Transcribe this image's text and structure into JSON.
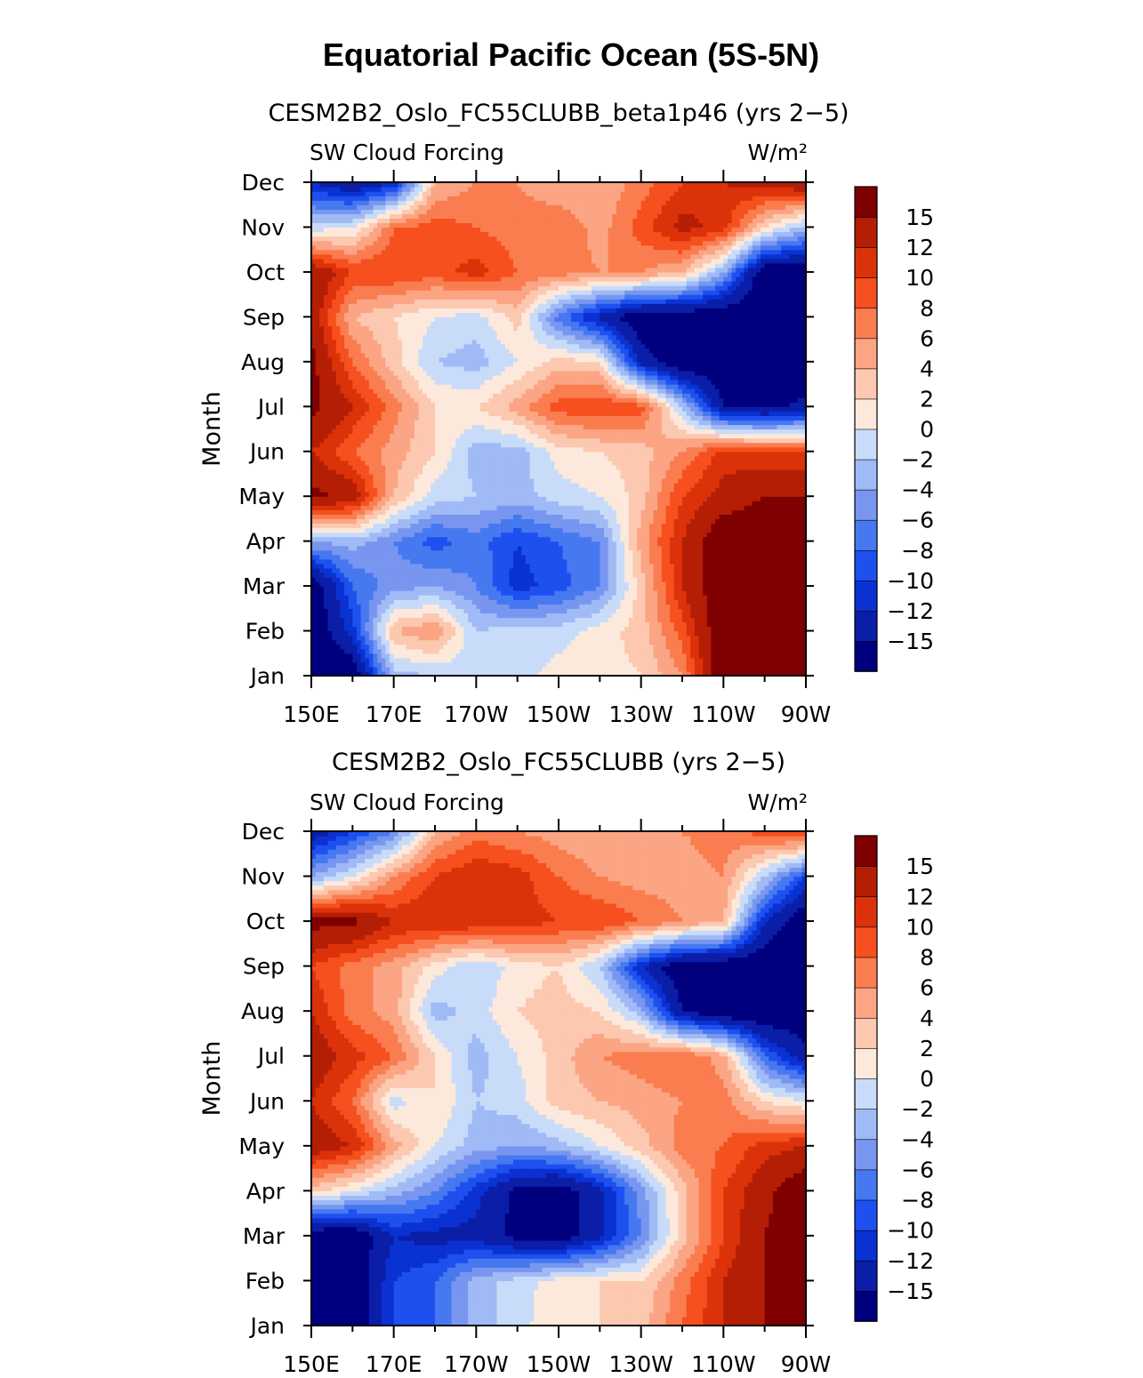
{
  "figure_title": "Equatorial Pacific Ocean (5S-5N)",
  "colors": [
    "#00007f",
    "#0a1ea8",
    "#0a32d2",
    "#1e50f0",
    "#4678f0",
    "#7896f0",
    "#a0baf5",
    "#c8dcfa",
    "#fde9dc",
    "#fcc8b0",
    "#fba584",
    "#fa7d50",
    "#f5501e",
    "#dc320a",
    "#b41e05",
    "#7f0000"
  ],
  "colorbar_labels": [
    "15",
    "12",
    "10",
    "8",
    "6",
    "4",
    "2",
    "0",
    "−2",
    "−4",
    "−6",
    "−8",
    "−10",
    "−12",
    "−15"
  ],
  "chart_data": [
    {
      "type": "heatmap",
      "title": "CESM2B2_Oslo_FC55CLUBB_beta1p46 (yrs 2−5)",
      "variable": "SW Cloud Forcing",
      "units": "W/m²",
      "xlabel": "",
      "ylabel": "Month",
      "xlim": [
        150,
        270
      ],
      "x_tick_values": [
        150,
        170,
        190,
        210,
        230,
        250,
        270
      ],
      "x_tick_labels": [
        "150E",
        "170E",
        "170W",
        "150W",
        "130W",
        "110W",
        "90W"
      ],
      "y_tick_labels": [
        "Jan",
        "Feb",
        "Mar",
        "Apr",
        "May",
        "Jun",
        "Jul",
        "Aug",
        "Sep",
        "Oct",
        "Nov",
        "Dec"
      ],
      "contour_levels": [
        -15,
        -12,
        -10,
        -8,
        -6,
        -4,
        -2,
        0,
        2,
        4,
        6,
        8,
        10,
        12,
        15
      ],
      "x": [
        150,
        160,
        170,
        180,
        190,
        200,
        210,
        220,
        230,
        240,
        250,
        260,
        270
      ],
      "values": [
        [
          -18,
          -18,
          -3,
          -2,
          -1,
          -1,
          1,
          1,
          2,
          6,
          18,
          18,
          18
        ],
        [
          -18,
          -11,
          4,
          6,
          -2,
          -1,
          -1,
          1,
          3,
          9,
          18,
          18,
          18
        ],
        [
          -18,
          -8,
          -5,
          -4,
          -6,
          -11,
          -9,
          -6,
          3,
          12,
          18,
          18,
          18
        ],
        [
          -4,
          -3,
          -6,
          -9,
          -7,
          -10,
          -8,
          -6,
          5,
          12,
          18,
          18,
          18
        ],
        [
          16,
          14,
          4,
          -1,
          -2,
          -3,
          -1,
          0,
          3,
          10,
          13,
          15,
          15
        ],
        [
          12,
          8,
          5,
          2,
          -3,
          -3,
          1,
          2,
          3,
          6,
          11,
          10,
          10
        ],
        [
          16,
          12,
          7,
          2,
          2,
          5,
          9,
          10,
          9,
          -2,
          -15,
          -16,
          -14
        ],
        [
          16,
          8,
          3,
          -2,
          -3,
          0,
          3,
          2,
          -13,
          -18,
          -18,
          -18,
          -18
        ],
        [
          14,
          4,
          2,
          0,
          -1,
          3,
          -7,
          -13,
          -18,
          -18,
          -18,
          -18,
          -18
        ],
        [
          15,
          10,
          10,
          9,
          11,
          8,
          7,
          6,
          6,
          4,
          -4,
          -18,
          -18
        ],
        [
          -1,
          0,
          8,
          9,
          8,
          7,
          8,
          5,
          9,
          13,
          11,
          2,
          -3
        ],
        [
          -12,
          -15,
          -12,
          4,
          6,
          6,
          4,
          4,
          7,
          10,
          12,
          13,
          15
        ]
      ]
    },
    {
      "type": "heatmap",
      "title": "CESM2B2_Oslo_FC55CLUBB (yrs 2−5)",
      "variable": "SW Cloud Forcing",
      "units": "W/m²",
      "xlabel": "",
      "ylabel": "Month",
      "xlim": [
        150,
        270
      ],
      "x_tick_values": [
        150,
        170,
        190,
        210,
        230,
        250,
        270
      ],
      "x_tick_labels": [
        "150E",
        "170E",
        "170W",
        "150W",
        "130W",
        "110W",
        "90W"
      ],
      "y_tick_labels": [
        "Jan",
        "Feb",
        "Mar",
        "Apr",
        "May",
        "Jun",
        "Jul",
        "Aug",
        "Sep",
        "Oct",
        "Nov",
        "Dec"
      ],
      "contour_levels": [
        -15,
        -12,
        -10,
        -8,
        -6,
        -4,
        -2,
        0,
        2,
        4,
        6,
        8,
        10,
        12,
        15
      ],
      "x": [
        150,
        160,
        170,
        180,
        190,
        200,
        210,
        220,
        230,
        240,
        250,
        260,
        270
      ],
      "values": [
        [
          -18,
          -18,
          -10,
          -8,
          -3,
          -1,
          2,
          2,
          3,
          8,
          12,
          15,
          15
        ],
        [
          -18,
          -18,
          -10,
          -8,
          -3,
          -1,
          1,
          2,
          2,
          7,
          12,
          15,
          15
        ],
        [
          -18,
          -18,
          -12,
          -13,
          -13,
          -16,
          -17,
          -13,
          -6,
          3,
          10,
          15,
          18
        ],
        [
          3,
          0,
          -3,
          -6,
          -11,
          -16,
          -17,
          -13,
          -5,
          3,
          10,
          14,
          18
        ],
        [
          14,
          12,
          5,
          0,
          -3,
          -4,
          -3,
          0,
          3,
          7,
          8,
          11,
          12
        ],
        [
          12,
          8,
          -1,
          2,
          -2,
          -1,
          3,
          4,
          5,
          6,
          7,
          2,
          0
        ],
        [
          14,
          11,
          8,
          2,
          -3,
          0,
          3,
          6,
          7,
          8,
          5,
          -8,
          -14
        ],
        [
          12,
          7,
          5,
          -3,
          -1,
          2,
          3,
          2,
          -3,
          -15,
          -18,
          -18,
          -18
        ],
        [
          10,
          7,
          5,
          1,
          -2,
          1,
          2,
          -2,
          -12,
          -18,
          -18,
          -18,
          -18
        ],
        [
          16,
          16,
          12,
          12,
          12,
          11,
          10,
          10,
          8,
          6,
          4,
          -12,
          -18
        ],
        [
          -4,
          0,
          6,
          10,
          12,
          11,
          8,
          6,
          5,
          5,
          6,
          -2,
          -10
        ],
        [
          -14,
          -10,
          -6,
          4,
          7,
          6,
          5,
          4,
          5,
          6,
          7,
          9,
          11
        ]
      ]
    }
  ]
}
